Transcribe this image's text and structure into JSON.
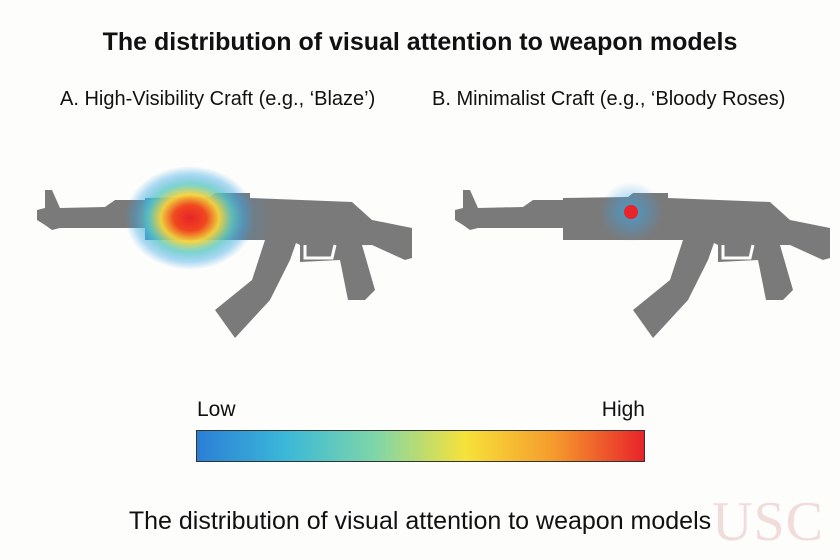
{
  "title": "The distribution of visual attention to weapon models",
  "panels": [
    {
      "label": "A. High-Visibility Craft (e.g., ‘Blaze’)",
      "attention": "high, spread over handguard"
    },
    {
      "label": "B. Minimalist Craft (e.g., ‘Bloody Roses)",
      "attention": "low, single point on receiver"
    }
  ],
  "legend": {
    "low_label": "Low",
    "high_label": "High",
    "colors": [
      "#2b7fd6",
      "#3bb8d8",
      "#7fd6a8",
      "#f6e23a",
      "#f59a2c",
      "#e8232a"
    ]
  },
  "caption": "The distribution of visual attention to weapon models",
  "watermark": "USC",
  "colors": {
    "rifle": "#7a7a7a",
    "heat_red": "#e8232a",
    "heat_blue": "#3aa6e8"
  }
}
